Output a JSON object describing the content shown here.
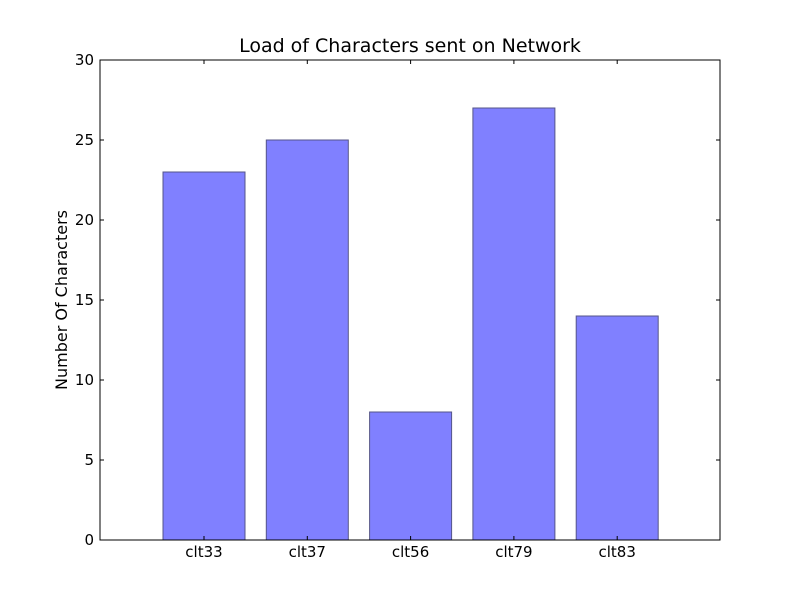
{
  "chart_data": {
    "type": "bar",
    "title": "Load of Characters sent on Network",
    "xlabel": "",
    "ylabel": "Number Of Characters",
    "categories": [
      "clt33",
      "clt37",
      "clt56",
      "clt79",
      "clt83"
    ],
    "values": [
      23,
      25,
      8,
      27,
      14
    ],
    "ylim": [
      0,
      30
    ],
    "yticks": [
      0,
      5,
      10,
      15,
      20,
      25,
      30
    ],
    "grid": false,
    "bar_color": "#8080ff",
    "bar_edge_color": "#555588"
  }
}
